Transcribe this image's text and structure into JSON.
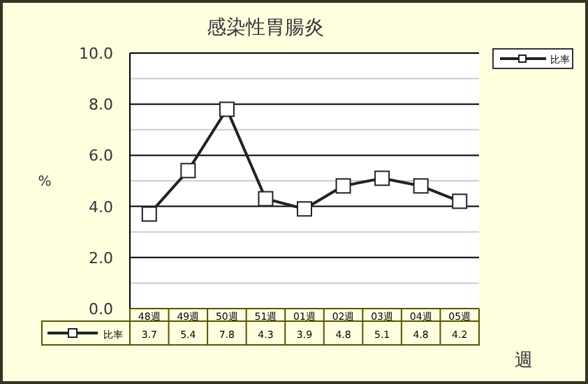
{
  "chart_data": {
    "type": "line",
    "title": "感染性胃腸炎",
    "xlabel": "週",
    "ylabel": "%",
    "categories": [
      "48週",
      "49週",
      "50週",
      "51週",
      "01週",
      "02週",
      "03週",
      "04週",
      "05週"
    ],
    "series": [
      {
        "name": "比率",
        "color": "#222222",
        "values": [
          3.7,
          5.4,
          7.8,
          4.3,
          3.9,
          4.8,
          5.1,
          4.8,
          4.2
        ]
      }
    ],
    "ylim": [
      0,
      10
    ],
    "yticks": [
      {
        "value": 0,
        "label": "0.0"
      },
      {
        "value": 1,
        "label": null
      },
      {
        "value": 2,
        "label": "2.0"
      },
      {
        "value": 3,
        "label": null
      },
      {
        "value": 4,
        "label": "4.0"
      },
      {
        "value": 5,
        "label": null
      },
      {
        "value": 6,
        "label": "6.0"
      },
      {
        "value": 7,
        "label": null
      },
      {
        "value": 8,
        "label": "8.0"
      },
      {
        "value": 9,
        "label": null
      },
      {
        "value": 10,
        "label": "10.0"
      }
    ],
    "grid": "y",
    "legend": "top right",
    "marker": "square",
    "line_style": "solid",
    "data_labels": true
  }
}
